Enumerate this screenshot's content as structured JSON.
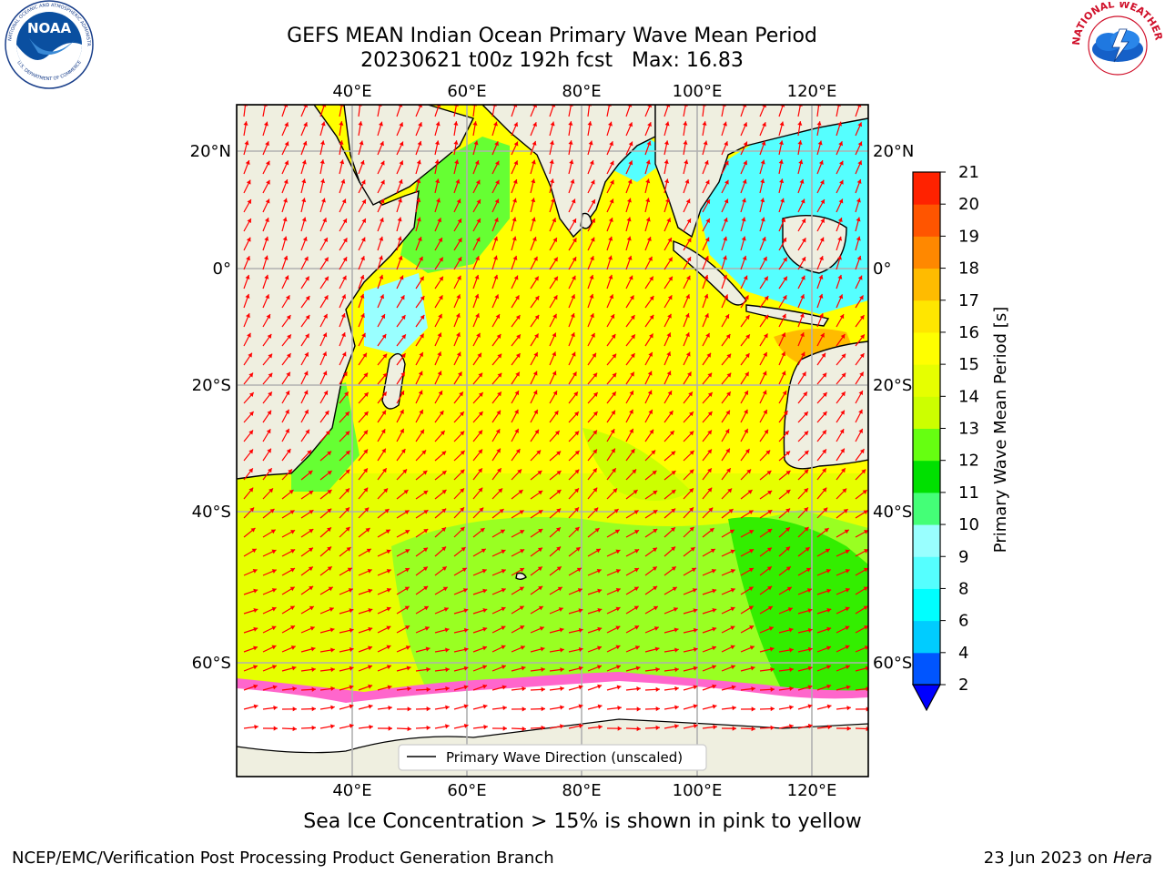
{
  "header": {
    "title_line1": "GEFS MEAN Indian Ocean Primary Wave Mean Period",
    "title_line2": "20230621 t00z 192h fcst   Max: 16.83"
  },
  "logos": {
    "left": "NOAA",
    "right_text": "NATIONAL WEATHER SERVICE"
  },
  "map": {
    "lon_ticks": [
      "40°E",
      "60°E",
      "80°E",
      "100°E",
      "120°E"
    ],
    "lat_ticks_left": [
      "20°N",
      "0°",
      "20°S",
      "40°S",
      "60°S"
    ],
    "lat_ticks_right": [
      "20°N",
      "0°",
      "20°S",
      "40°S",
      "60°S"
    ],
    "legend_label": "Primary Wave Direction (unscaled)",
    "arrow_color": "#ff0000",
    "land_color": "#efefe0",
    "ice_color": "#ffffff"
  },
  "colorbar": {
    "label": "Primary Wave Mean Period [s]",
    "ticks": [
      "2",
      "4",
      "6",
      "8",
      "9",
      "10",
      "11",
      "12",
      "13",
      "14",
      "15",
      "16",
      "17",
      "18",
      "19",
      "20",
      "21"
    ],
    "colors": [
      "#0055ff",
      "#00ccff",
      "#00ffff",
      "#55ffff",
      "#99ffff",
      "#44ff77",
      "#00e000",
      "#66ff11",
      "#ccff00",
      "#e6ff00",
      "#ffff00",
      "#ffe600",
      "#ffbb00",
      "#ff8800",
      "#ff5500",
      "#ff2200"
    ],
    "under_color": "#0000ff"
  },
  "note": "Sea Ice Concentration > 15% is shown in pink to yellow",
  "footer": {
    "left": "NCEP/EMC/Verification Post Processing Product Generation Branch",
    "right_date": "23 Jun 2023 on ",
    "right_host": "Hera"
  }
}
